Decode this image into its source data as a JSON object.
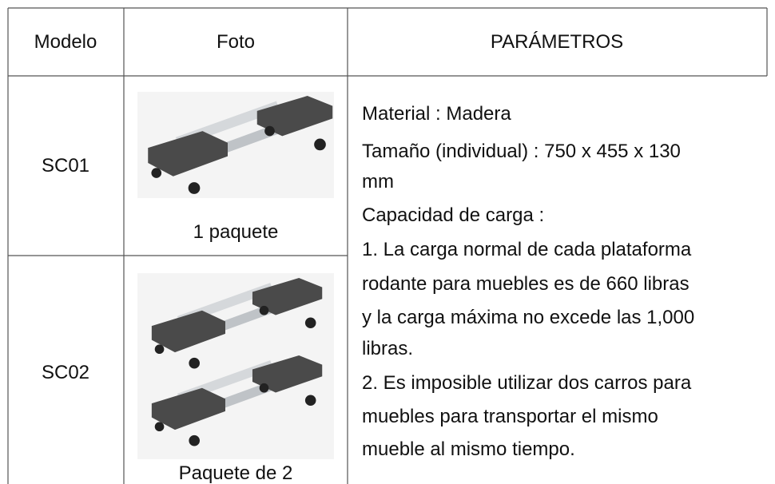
{
  "table": {
    "header": [
      "Modelo",
      "Foto",
      "PARÁMETROS"
    ],
    "rows": [
      {
        "model": "SC01",
        "caption": "1 paquete"
      },
      {
        "model": "SC02",
        "caption": "Paquete de 2"
      }
    ],
    "parameters": [
      "Material : Madera",
      "Tamaño (individual) : 750 x 455 x 130",
      "mm",
      "Capacidad de carga :",
      "1.  La carga normal de cada plataforma",
      "rodante para muebles es de 660 libras",
      "y la carga máxima no excede las 1,000",
      "libras.",
      "2.  Es imposible utilizar dos carros para",
      "muebles para transportar el mismo",
      "mueble al mismo tiempo."
    ]
  }
}
